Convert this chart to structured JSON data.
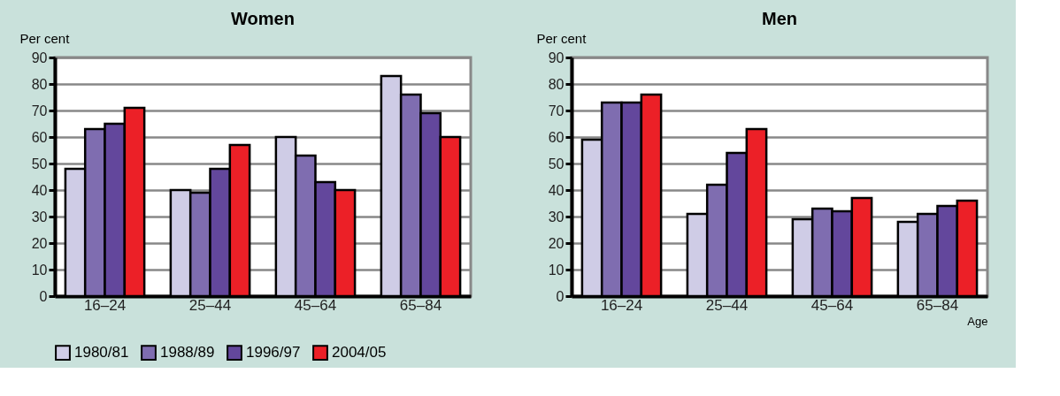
{
  "chart_data": [
    {
      "type": "bar",
      "title": "Women",
      "ylabel": "Per cent",
      "categories": [
        "16–24",
        "25–44",
        "45–64",
        "65–84"
      ],
      "ylim": [
        0,
        90
      ],
      "yticks": [
        0,
        10,
        20,
        30,
        40,
        50,
        60,
        70,
        80,
        90
      ],
      "grid": "y",
      "legend": "bottom",
      "series": [
        {
          "name": "1980/81",
          "color": "#cfcce6",
          "values": [
            48,
            40,
            60,
            83
          ]
        },
        {
          "name": "1988/89",
          "color": "#7f6db0",
          "values": [
            63,
            39,
            53,
            76
          ]
        },
        {
          "name": "1996/97",
          "color": "#63479c",
          "values": [
            65,
            48,
            43,
            69
          ]
        },
        {
          "name": "2004/05",
          "color": "#ec2027",
          "values": [
            71,
            57,
            40,
            60
          ]
        }
      ]
    },
    {
      "type": "bar",
      "title": "Men",
      "ylabel": "Per cent",
      "xlabel": "Age",
      "categories": [
        "16–24",
        "25–44",
        "45–64",
        "65–84"
      ],
      "ylim": [
        0,
        90
      ],
      "yticks": [
        0,
        10,
        20,
        30,
        40,
        50,
        60,
        70,
        80,
        90
      ],
      "grid": "y",
      "legend": "bottom",
      "series": [
        {
          "name": "1980/81",
          "color": "#cfcce6",
          "values": [
            59,
            31,
            29,
            28
          ]
        },
        {
          "name": "1988/89",
          "color": "#7f6db0",
          "values": [
            73,
            42,
            33,
            31
          ]
        },
        {
          "name": "1996/97",
          "color": "#63479c",
          "values": [
            73,
            54,
            32,
            34
          ]
        },
        {
          "name": "2004/05",
          "color": "#ec2027",
          "values": [
            76,
            63,
            37,
            36
          ]
        }
      ]
    }
  ]
}
